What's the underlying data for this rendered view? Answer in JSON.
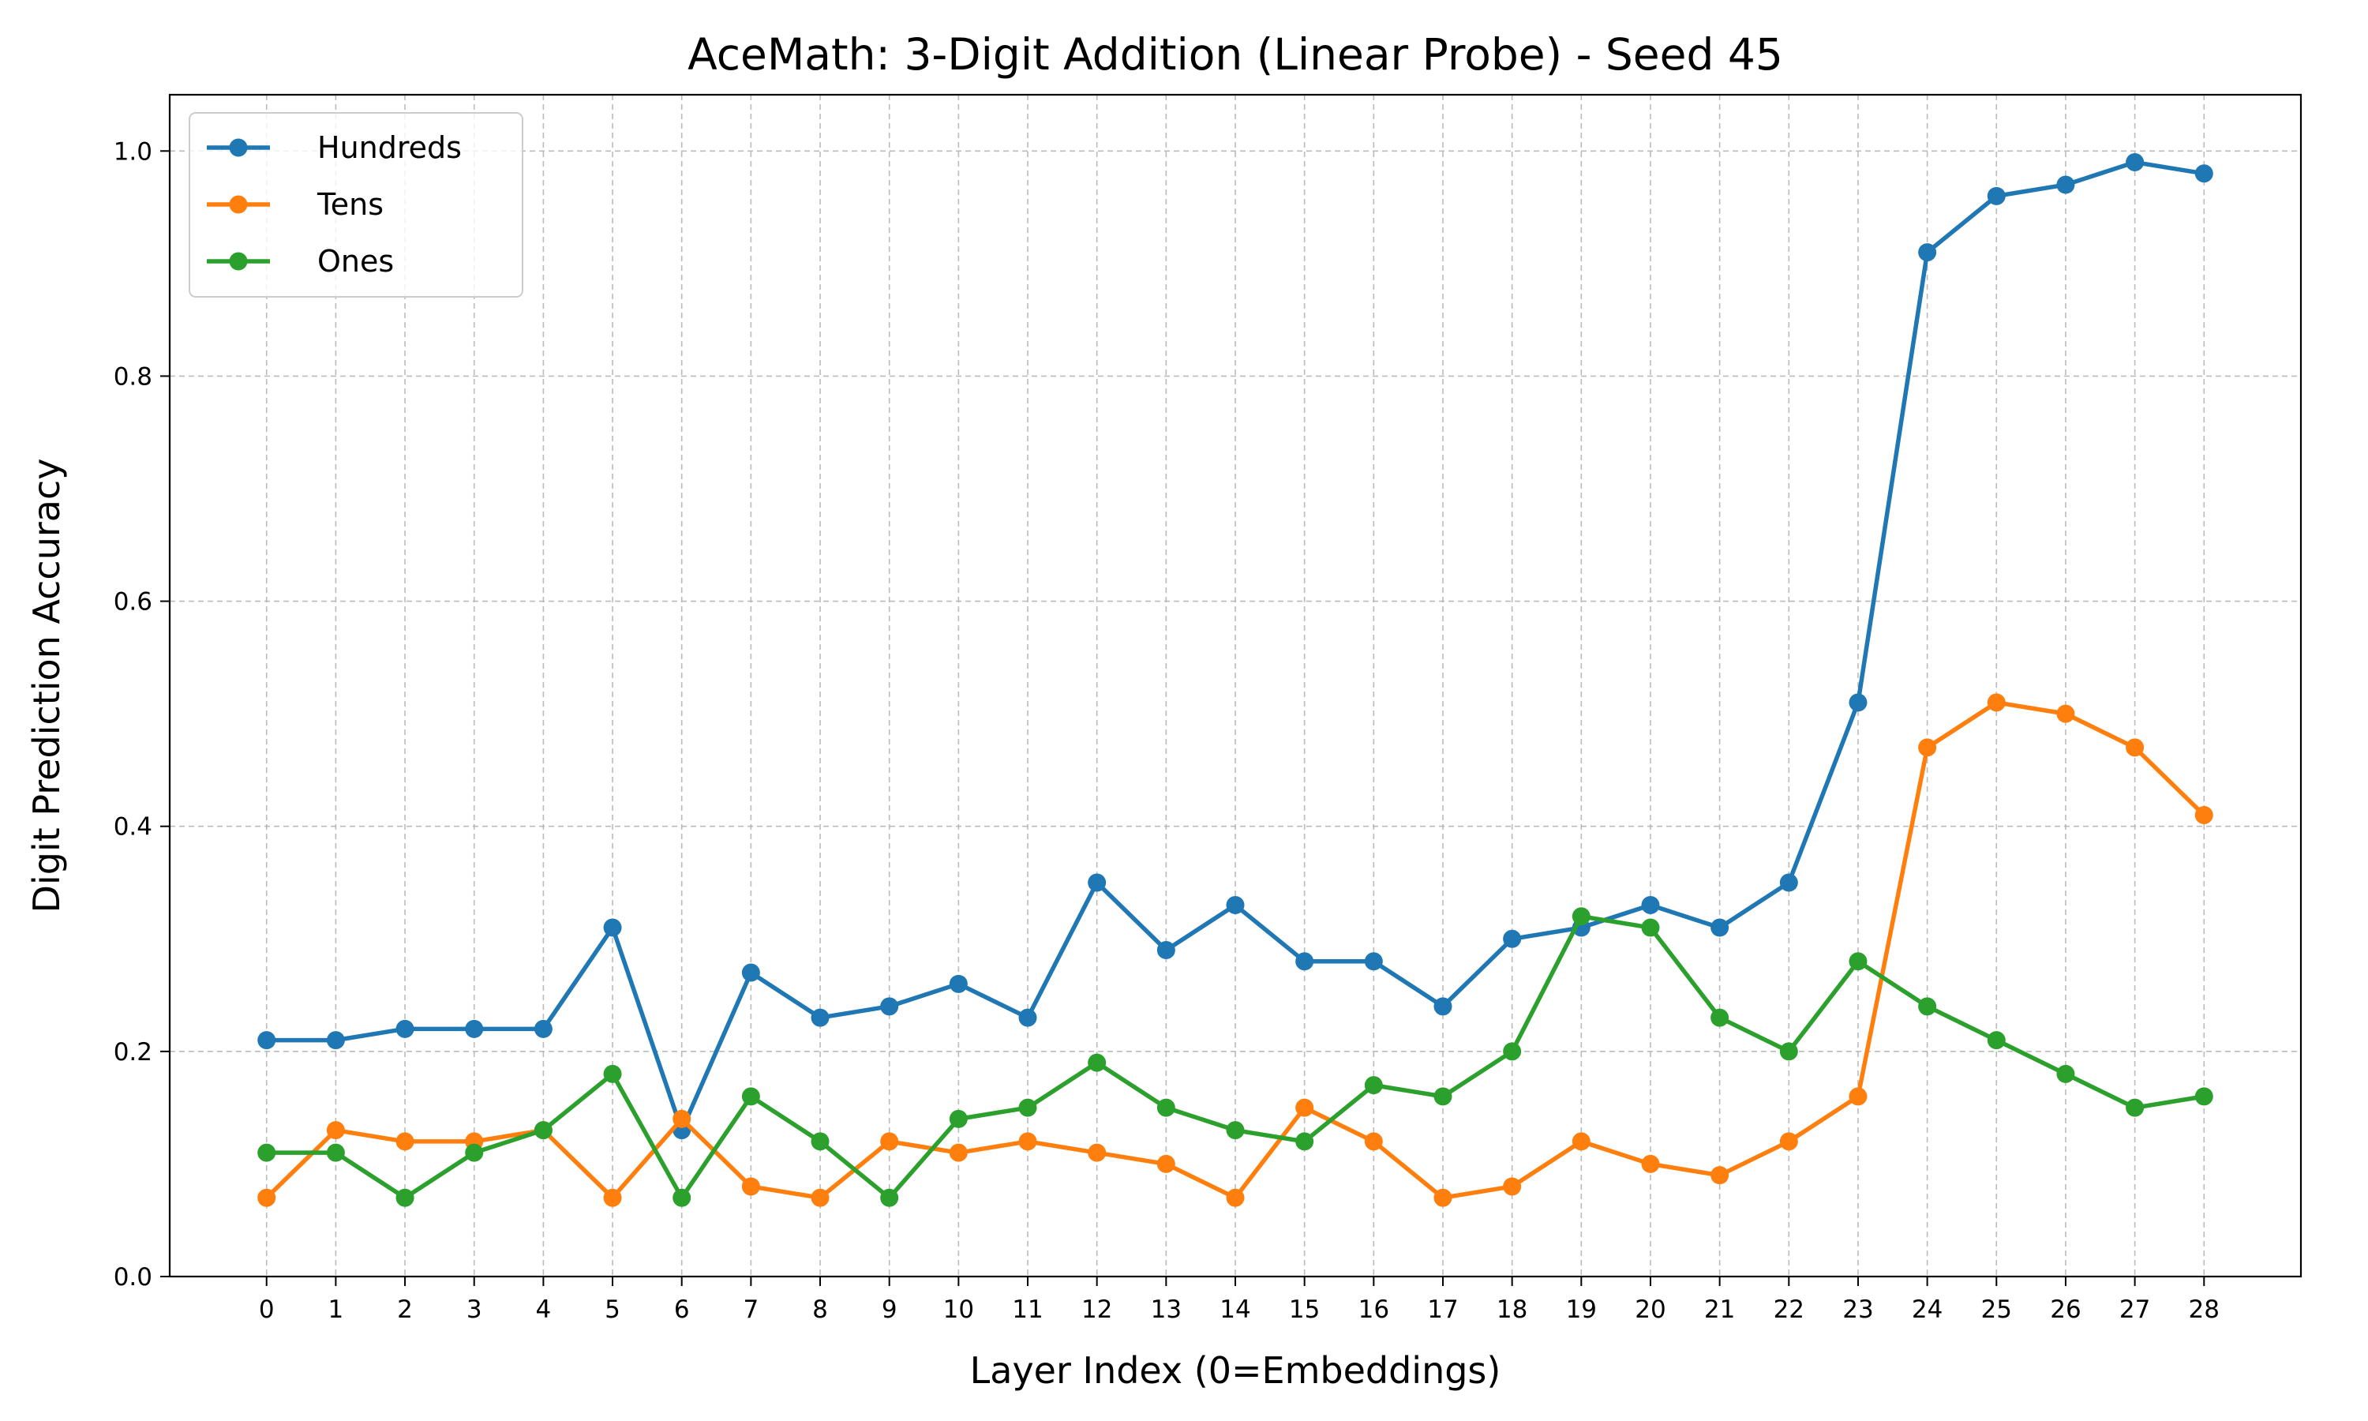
{
  "chart_data": {
    "type": "line",
    "title": "AceMath: 3-Digit Addition (Linear Probe) - Seed 45",
    "xlabel": "Layer Index (0=Embeddings)",
    "ylabel": "Digit Prediction Accuracy",
    "x": [
      0,
      1,
      2,
      3,
      4,
      5,
      6,
      7,
      8,
      9,
      10,
      11,
      12,
      13,
      14,
      15,
      16,
      17,
      18,
      19,
      20,
      21,
      22,
      23,
      24,
      25,
      26,
      27,
      28
    ],
    "x_tick_labels": [
      "0",
      "1",
      "2",
      "3",
      "4",
      "5",
      "6",
      "7",
      "8",
      "9",
      "10",
      "11",
      "12",
      "13",
      "14",
      "15",
      "16",
      "17",
      "18",
      "19",
      "20",
      "21",
      "22",
      "23",
      "24",
      "25",
      "26",
      "27",
      "28"
    ],
    "y_ticks": [
      0.0,
      0.2,
      0.4,
      0.6,
      0.8,
      1.0
    ],
    "y_tick_labels": [
      "0.0",
      "0.2",
      "0.4",
      "0.6",
      "0.8",
      "1.0"
    ],
    "xlim": [
      -1.4,
      29.4
    ],
    "ylim": [
      0.0,
      1.05
    ],
    "grid": true,
    "legend_position": "top-left",
    "series": [
      {
        "name": "Hundreds",
        "color": "#1f77b4",
        "values": [
          0.21,
          0.21,
          0.22,
          0.22,
          0.22,
          0.31,
          0.13,
          0.27,
          0.23,
          0.24,
          0.26,
          0.23,
          0.35,
          0.29,
          0.33,
          0.28,
          0.28,
          0.24,
          0.3,
          0.31,
          0.33,
          0.31,
          0.35,
          0.51,
          0.91,
          0.96,
          0.97,
          0.99,
          0.98
        ]
      },
      {
        "name": "Tens",
        "color": "#ff7f0e",
        "values": [
          0.07,
          0.13,
          0.12,
          0.12,
          0.13,
          0.07,
          0.14,
          0.08,
          0.07,
          0.12,
          0.11,
          0.12,
          0.11,
          0.1,
          0.07,
          0.15,
          0.12,
          0.07,
          0.08,
          0.12,
          0.1,
          0.09,
          0.12,
          0.16,
          0.47,
          0.51,
          0.5,
          0.47,
          0.41
        ]
      },
      {
        "name": "Ones",
        "color": "#2ca02c",
        "values": [
          0.11,
          0.11,
          0.07,
          0.11,
          0.13,
          0.18,
          0.07,
          0.16,
          0.12,
          0.07,
          0.14,
          0.15,
          0.19,
          0.15,
          0.13,
          0.12,
          0.17,
          0.16,
          0.2,
          0.32,
          0.31,
          0.23,
          0.2,
          0.28,
          0.24,
          0.21,
          0.18,
          0.15,
          0.16
        ]
      }
    ]
  }
}
